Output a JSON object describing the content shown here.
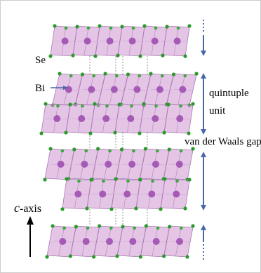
{
  "labels": {
    "se": "Se",
    "bi": "Bi",
    "quintuple": "quintuple",
    "unit": "unit",
    "vdw_gap": "van der Waals gap",
    "axis_italic": "c",
    "axis_rest": "-axis"
  }
}
